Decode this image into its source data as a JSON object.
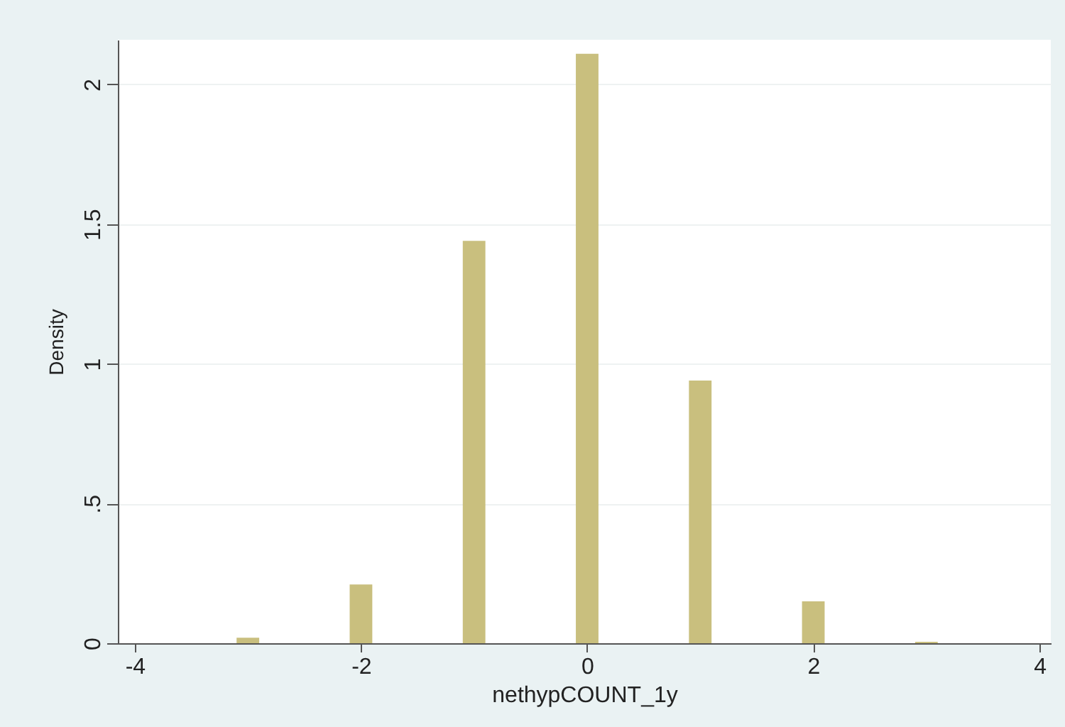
{
  "chart_data": {
    "type": "histogram",
    "xlabel": "nethypCOUNT_1y",
    "ylabel": "Density",
    "bins": [
      -3.1,
      -2.9,
      -2.1,
      -1.9,
      -1.1,
      -0.9,
      -0.1,
      0.1,
      0.9,
      1.1,
      1.9,
      2.1,
      2.9,
      3.1
    ],
    "values": [
      0.02,
      0,
      0.21,
      0,
      1.44,
      0,
      2.11,
      0,
      0.94,
      0,
      0.15,
      0,
      0.005
    ],
    "color": "#c9bf7e",
    "xlim": [
      -4.15,
      4.1
    ],
    "xticks": [
      -4,
      -2,
      0,
      2,
      4
    ],
    "ylim": [
      0,
      2.16
    ],
    "yticks": [
      0,
      {
        "value": 0.5,
        "label": ".5"
      },
      1,
      1.5,
      2
    ],
    "grid": "y"
  }
}
